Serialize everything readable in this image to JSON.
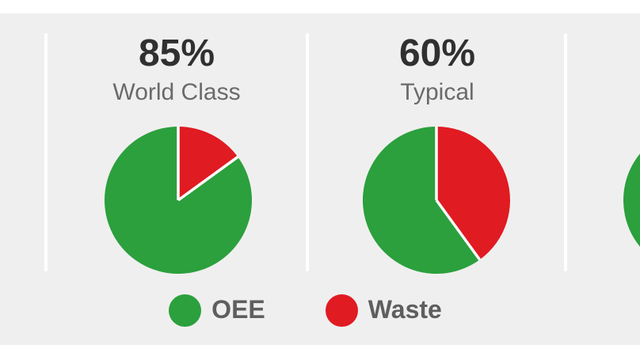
{
  "colors": {
    "oee_green": "#2ba03d",
    "waste_red": "#e01b22",
    "background_gray": "#f0efef",
    "title_dark": "#303030",
    "subtitle_gray": "#6a6a6a",
    "legend_text_gray": "#5e5e5e",
    "slice_separator": "#ffffff"
  },
  "chart_data": {
    "type": "pie",
    "title": "",
    "legend_position": "bottom-center",
    "legend": [
      {
        "label": "OEE",
        "color": "#2ba03d"
      },
      {
        "label": "Waste",
        "color": "#e01b22"
      }
    ],
    "pies": [
      {
        "title": "85%",
        "subtitle": "World Class",
        "oee_pct": 85,
        "waste_pct": 15
      },
      {
        "title": "60%",
        "subtitle": "Typical",
        "oee_pct": 60,
        "waste_pct": 40
      },
      {
        "partially_visible": true,
        "visible_slice": "OEE (green) sliver at right edge, rest cropped off-screen",
        "oee_pct": null,
        "waste_pct": null
      }
    ]
  }
}
